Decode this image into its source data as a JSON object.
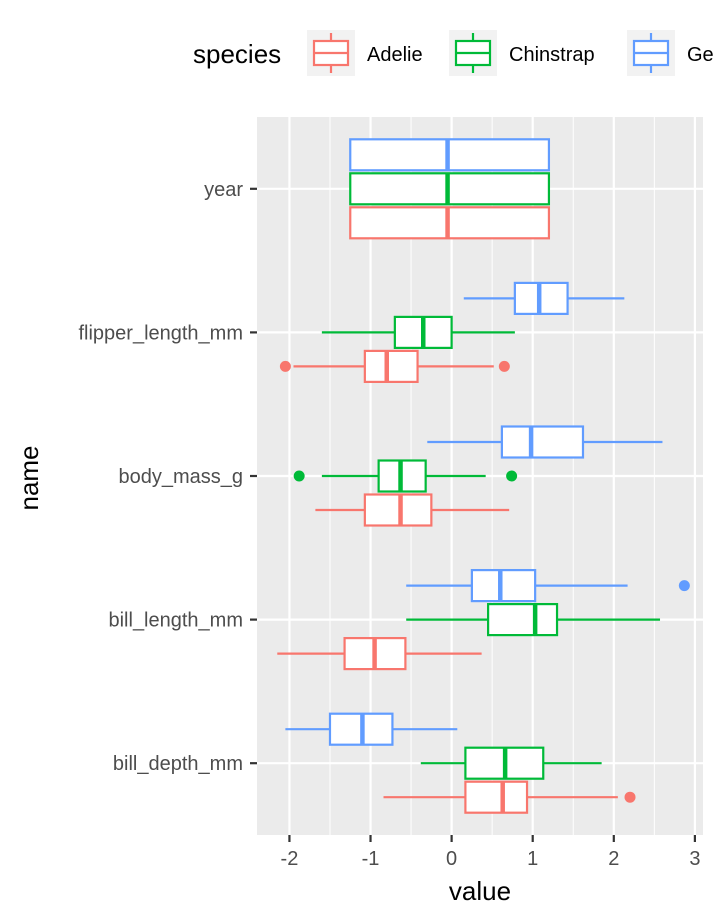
{
  "chart_data": {
    "type": "boxplot",
    "orientation": "horizontal",
    "xlabel": "value",
    "ylabel": "name",
    "xlim": [
      -2.4,
      3.1
    ],
    "x_ticks": [
      -2,
      -1,
      0,
      1,
      2,
      3
    ],
    "x_tick_labels": [
      "-2",
      "-1",
      "0",
      "1",
      "2",
      "3"
    ],
    "categories": [
      "year",
      "flipper_length_mm",
      "body_mass_g",
      "bill_length_mm",
      "bill_depth_mm"
    ],
    "legend": {
      "title": "species",
      "position": "top",
      "entries": [
        "Adelie",
        "Chinstrap",
        "Ge"
      ]
    },
    "grid": true,
    "colors": {
      "Adelie": "#F8766D",
      "Chinstrap": "#00BA38",
      "Gentoo": "#619CFF",
      "panel": "#EBEBEB",
      "grid": "#FFFFFF"
    },
    "series": [
      {
        "key": "Adelie",
        "boxes": [
          {
            "category": "year",
            "whisker_low": -1.25,
            "q1": -1.25,
            "median": -0.05,
            "q3": 1.2,
            "whisker_high": 1.2,
            "outliers": []
          },
          {
            "category": "flipper_length_mm",
            "whisker_low": -1.95,
            "q1": -1.07,
            "median": -0.8,
            "q3": -0.42,
            "whisker_high": 0.52,
            "outliers": [
              -2.05,
              0.65
            ]
          },
          {
            "category": "body_mass_g",
            "whisker_low": -1.68,
            "q1": -1.07,
            "median": -0.63,
            "q3": -0.25,
            "whisker_high": 0.71,
            "outliers": []
          },
          {
            "category": "bill_length_mm",
            "whisker_low": -2.15,
            "q1": -1.32,
            "median": -0.95,
            "q3": -0.57,
            "whisker_high": 0.37,
            "outliers": []
          },
          {
            "category": "bill_depth_mm",
            "whisker_low": -0.84,
            "q1": 0.17,
            "median": 0.63,
            "q3": 0.93,
            "whisker_high": 2.05,
            "outliers": [
              2.2
            ]
          }
        ]
      },
      {
        "key": "Chinstrap",
        "boxes": [
          {
            "category": "year",
            "whisker_low": -1.25,
            "q1": -1.25,
            "median": -0.05,
            "q3": 1.2,
            "whisker_high": 1.2,
            "outliers": []
          },
          {
            "category": "flipper_length_mm",
            "whisker_low": -1.6,
            "q1": -0.7,
            "median": -0.35,
            "q3": 0.0,
            "whisker_high": 0.78,
            "outliers": []
          },
          {
            "category": "body_mass_g",
            "whisker_low": -1.6,
            "q1": -0.9,
            "median": -0.63,
            "q3": -0.32,
            "whisker_high": 0.42,
            "outliers": [
              -1.88,
              0.74
            ]
          },
          {
            "category": "bill_length_mm",
            "whisker_low": -0.56,
            "q1": 0.45,
            "median": 1.03,
            "q3": 1.3,
            "whisker_high": 2.57,
            "outliers": []
          },
          {
            "category": "bill_depth_mm",
            "whisker_low": -0.38,
            "q1": 0.17,
            "median": 0.66,
            "q3": 1.13,
            "whisker_high": 1.85,
            "outliers": []
          }
        ]
      },
      {
        "key": "Gentoo",
        "boxes": [
          {
            "category": "year",
            "whisker_low": -1.25,
            "q1": -1.25,
            "median": -0.05,
            "q3": 1.2,
            "whisker_high": 1.2,
            "outliers": []
          },
          {
            "category": "flipper_length_mm",
            "whisker_low": 0.15,
            "q1": 0.78,
            "median": 1.08,
            "q3": 1.43,
            "whisker_high": 2.13,
            "outliers": []
          },
          {
            "category": "body_mass_g",
            "whisker_low": -0.3,
            "q1": 0.62,
            "median": 0.98,
            "q3": 1.62,
            "whisker_high": 2.6,
            "outliers": []
          },
          {
            "category": "bill_length_mm",
            "whisker_low": -0.56,
            "q1": 0.25,
            "median": 0.6,
            "q3": 1.03,
            "whisker_high": 2.17,
            "outliers": [
              2.87
            ]
          },
          {
            "category": "bill_depth_mm",
            "whisker_low": -2.05,
            "q1": -1.5,
            "median": -1.1,
            "q3": -0.73,
            "whisker_high": 0.07,
            "outliers": []
          }
        ]
      }
    ]
  }
}
